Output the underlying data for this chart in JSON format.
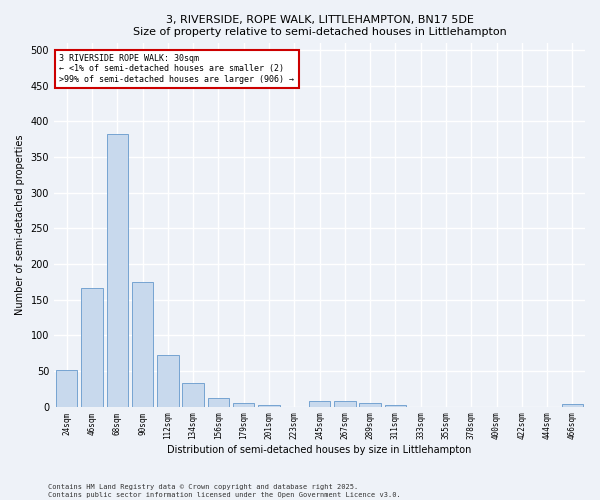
{
  "title": "3, RIVERSIDE, ROPE WALK, LITTLEHAMPTON, BN17 5DE",
  "subtitle": "Size of property relative to semi-detached houses in Littlehampton",
  "xlabel": "Distribution of semi-detached houses by size in Littlehampton",
  "ylabel": "Number of semi-detached properties",
  "categories": [
    "24sqm",
    "46sqm",
    "68sqm",
    "90sqm",
    "112sqm",
    "134sqm",
    "156sqm",
    "179sqm",
    "201sqm",
    "223sqm",
    "245sqm",
    "267sqm",
    "289sqm",
    "311sqm",
    "333sqm",
    "355sqm",
    "378sqm",
    "400sqm",
    "422sqm",
    "444sqm",
    "466sqm"
  ],
  "values": [
    51,
    166,
    383,
    175,
    72,
    33,
    12,
    6,
    2,
    0,
    8,
    8,
    5,
    2,
    0,
    0,
    0,
    0,
    0,
    0,
    4
  ],
  "bar_color": "#c8d9ed",
  "bar_edge_color": "#6699cc",
  "annotation_text": "3 RIVERSIDE ROPE WALK: 30sqm\n← <1% of semi-detached houses are smaller (2)\n>99% of semi-detached houses are larger (906) →",
  "annotation_box_color": "#ffffff",
  "annotation_box_edge_color": "#cc0000",
  "footer_line1": "Contains HM Land Registry data © Crown copyright and database right 2025.",
  "footer_line2": "Contains public sector information licensed under the Open Government Licence v3.0.",
  "bg_color": "#eef2f8",
  "grid_color": "#ffffff",
  "ylim": [
    0,
    510
  ],
  "yticks": [
    0,
    50,
    100,
    150,
    200,
    250,
    300,
    350,
    400,
    450,
    500
  ]
}
